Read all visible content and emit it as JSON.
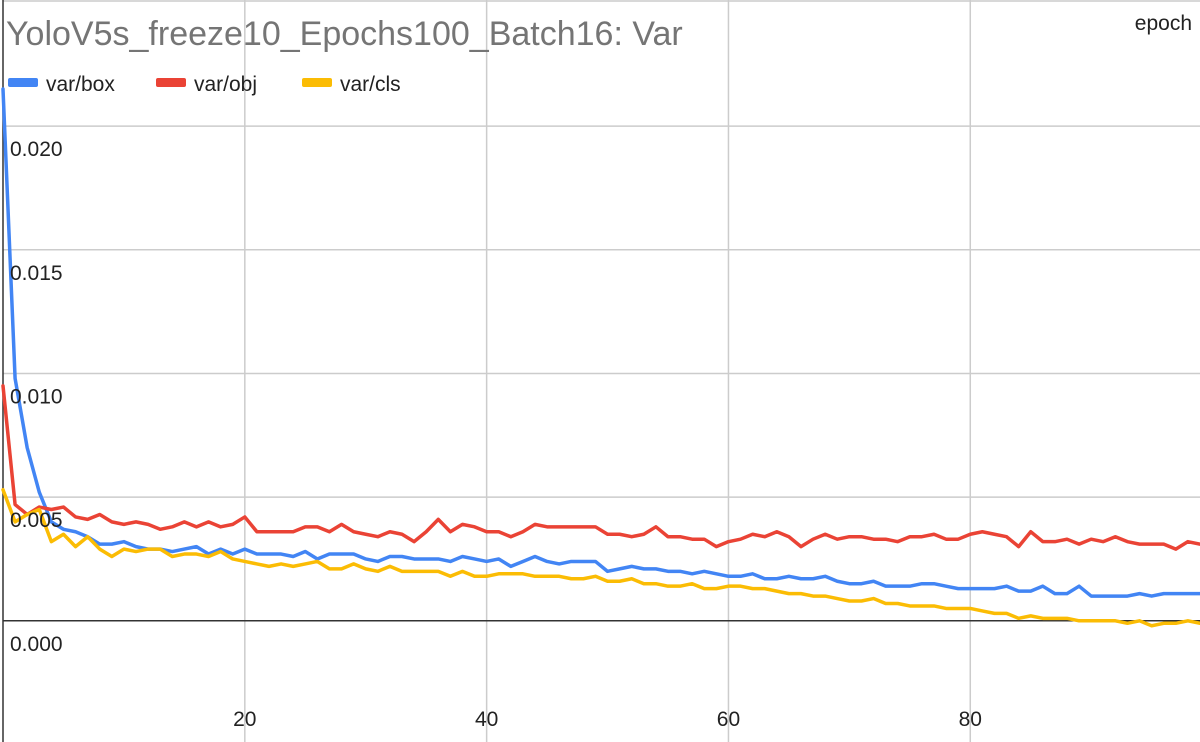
{
  "chart_data": {
    "type": "line",
    "title": "YoloV5s_freeze10_Epochs100_Batch16: Var",
    "xlabel": "epoch",
    "ylabel": "",
    "xlim": [
      0,
      99
    ],
    "ylim": [
      -0.0049,
      0.0251
    ],
    "x_ticks": [
      20,
      40,
      60,
      80
    ],
    "y_ticks": [
      0.0,
      0.005,
      0.01,
      0.015,
      0.02
    ],
    "x_tick_labels": [
      "20",
      "40",
      "60",
      "80"
    ],
    "y_tick_labels": [
      "0.000",
      "0.005",
      "0.010",
      "0.015",
      "0.020"
    ],
    "grid": true,
    "legend_position": "top-left",
    "x": [
      0,
      1,
      2,
      3,
      4,
      5,
      6,
      7,
      8,
      9,
      10,
      11,
      12,
      13,
      14,
      15,
      16,
      17,
      18,
      19,
      20,
      21,
      22,
      23,
      24,
      25,
      26,
      27,
      28,
      29,
      30,
      31,
      32,
      33,
      34,
      35,
      36,
      37,
      38,
      39,
      40,
      41,
      42,
      43,
      44,
      45,
      46,
      47,
      48,
      49,
      50,
      51,
      52,
      53,
      54,
      55,
      56,
      57,
      58,
      59,
      60,
      61,
      62,
      63,
      64,
      65,
      66,
      67,
      68,
      69,
      70,
      71,
      72,
      73,
      74,
      75,
      76,
      77,
      78,
      79,
      80,
      81,
      82,
      83,
      84,
      85,
      86,
      87,
      88,
      89,
      90,
      91,
      92,
      93,
      94,
      95,
      96,
      97,
      98,
      99
    ],
    "series": [
      {
        "name": "var/box",
        "color": "#4285f4",
        "values": [
          0.0215,
          0.0098,
          0.007,
          0.0052,
          0.004,
          0.0037,
          0.0036,
          0.0034,
          0.0031,
          0.0031,
          0.0032,
          0.003,
          0.0029,
          0.0029,
          0.0028,
          0.0029,
          0.003,
          0.0027,
          0.0029,
          0.0027,
          0.0029,
          0.0027,
          0.0027,
          0.0027,
          0.0026,
          0.0028,
          0.0025,
          0.0027,
          0.0027,
          0.0027,
          0.0025,
          0.0024,
          0.0026,
          0.0026,
          0.0025,
          0.0025,
          0.0025,
          0.0024,
          0.0026,
          0.0025,
          0.0024,
          0.0025,
          0.0022,
          0.0024,
          0.0026,
          0.0024,
          0.0023,
          0.0024,
          0.0024,
          0.0024,
          0.002,
          0.0021,
          0.0022,
          0.0021,
          0.0021,
          0.002,
          0.002,
          0.0019,
          0.002,
          0.0019,
          0.0018,
          0.0018,
          0.0019,
          0.0017,
          0.0017,
          0.0018,
          0.0017,
          0.0017,
          0.0018,
          0.0016,
          0.0015,
          0.0015,
          0.0016,
          0.0014,
          0.0014,
          0.0014,
          0.0015,
          0.0015,
          0.0014,
          0.0013,
          0.0013,
          0.0013,
          0.0013,
          0.0014,
          0.0012,
          0.0012,
          0.0014,
          0.0011,
          0.0011,
          0.0014,
          0.001,
          0.001,
          0.001,
          0.001,
          0.0011,
          0.001,
          0.0011,
          0.0011,
          0.0011,
          0.0011
        ]
      },
      {
        "name": "var/obj",
        "color": "#ea4335",
        "values": [
          0.0095,
          0.0047,
          0.0043,
          0.0046,
          0.0045,
          0.0046,
          0.0042,
          0.0041,
          0.0043,
          0.004,
          0.0039,
          0.004,
          0.0039,
          0.0037,
          0.0038,
          0.004,
          0.0038,
          0.004,
          0.0038,
          0.0039,
          0.0042,
          0.0036,
          0.0036,
          0.0036,
          0.0036,
          0.0038,
          0.0038,
          0.0036,
          0.0039,
          0.0036,
          0.0035,
          0.0034,
          0.0036,
          0.0035,
          0.0032,
          0.0036,
          0.0041,
          0.0036,
          0.0039,
          0.0038,
          0.0036,
          0.0036,
          0.0034,
          0.0036,
          0.0039,
          0.0038,
          0.0038,
          0.0038,
          0.0038,
          0.0038,
          0.0035,
          0.0035,
          0.0034,
          0.0035,
          0.0038,
          0.0034,
          0.0034,
          0.0033,
          0.0033,
          0.003,
          0.0032,
          0.0033,
          0.0035,
          0.0034,
          0.0036,
          0.0034,
          0.003,
          0.0033,
          0.0035,
          0.0033,
          0.0034,
          0.0034,
          0.0033,
          0.0033,
          0.0032,
          0.0034,
          0.0034,
          0.0035,
          0.0033,
          0.0033,
          0.0035,
          0.0036,
          0.0035,
          0.0034,
          0.003,
          0.0036,
          0.0032,
          0.0032,
          0.0033,
          0.0031,
          0.0033,
          0.0032,
          0.0034,
          0.0032,
          0.0031,
          0.0031,
          0.0031,
          0.0029,
          0.0032,
          0.0031
        ]
      },
      {
        "name": "var/cls",
        "color": "#fbbc04",
        "values": [
          0.0053,
          0.004,
          0.0043,
          0.0045,
          0.0032,
          0.0035,
          0.003,
          0.0034,
          0.0029,
          0.0026,
          0.0029,
          0.0028,
          0.0029,
          0.0029,
          0.0026,
          0.0027,
          0.0027,
          0.0026,
          0.0028,
          0.0025,
          0.0024,
          0.0023,
          0.0022,
          0.0023,
          0.0022,
          0.0023,
          0.0024,
          0.0021,
          0.0021,
          0.0023,
          0.0021,
          0.002,
          0.0022,
          0.002,
          0.002,
          0.002,
          0.002,
          0.0018,
          0.002,
          0.0018,
          0.0018,
          0.0019,
          0.0019,
          0.0019,
          0.0018,
          0.0018,
          0.0018,
          0.0017,
          0.0017,
          0.0018,
          0.0016,
          0.0016,
          0.0017,
          0.0015,
          0.0015,
          0.0014,
          0.0014,
          0.0015,
          0.0013,
          0.0013,
          0.0014,
          0.0014,
          0.0013,
          0.0013,
          0.0012,
          0.0011,
          0.0011,
          0.001,
          0.001,
          0.0009,
          0.0008,
          0.0008,
          0.0009,
          0.0007,
          0.0007,
          0.0006,
          0.0006,
          0.0006,
          0.0005,
          0.0005,
          0.0005,
          0.0004,
          0.0003,
          0.0003,
          0.0001,
          0.0002,
          0.0001,
          0.0001,
          0.0001,
          0.0,
          0.0,
          0.0,
          0.0,
          -0.0001,
          0.0,
          -0.0002,
          -0.0001,
          -0.0001,
          0.0,
          -0.0001
        ]
      }
    ]
  }
}
